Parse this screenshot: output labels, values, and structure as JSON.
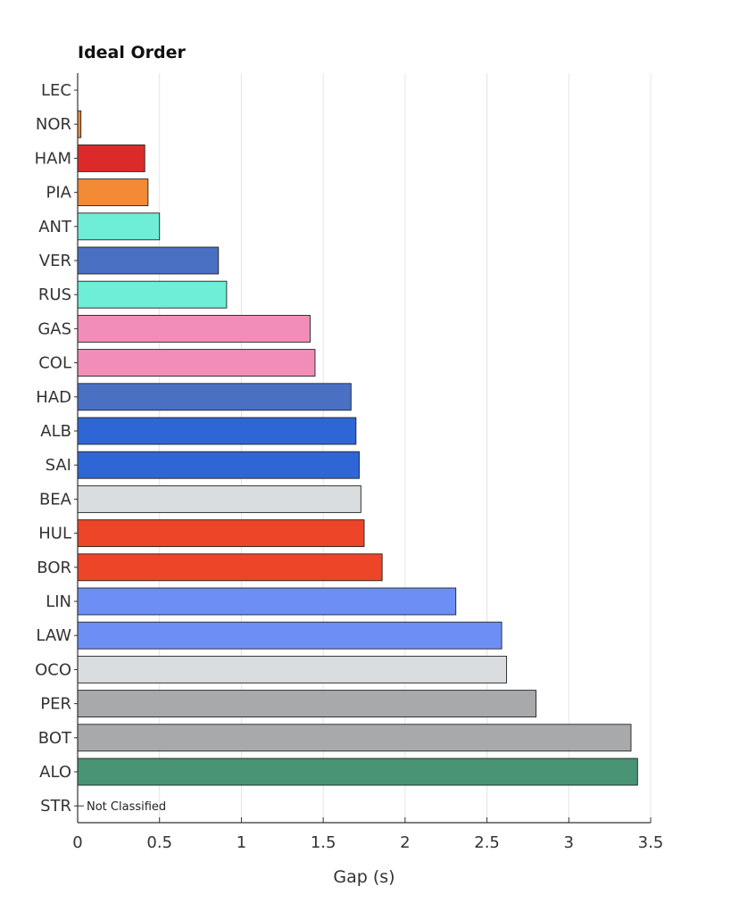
{
  "chart_data": {
    "type": "bar",
    "orientation": "horizontal",
    "title": "Ideal Order",
    "xlabel": "Gap (s)",
    "ylabel": "",
    "xlim": [
      0,
      3.5
    ],
    "xticks": [
      0,
      0.5,
      1,
      1.5,
      2,
      2.5,
      3,
      3.5
    ],
    "xtick_labels": [
      "0",
      "0.5",
      "1",
      "1.5",
      "2",
      "2.5",
      "3",
      "3.5"
    ],
    "grid": "vertical",
    "categories": [
      "LEC",
      "NOR",
      "HAM",
      "PIA",
      "ANT",
      "VER",
      "RUS",
      "GAS",
      "COL",
      "HAD",
      "ALB",
      "SAI",
      "BEA",
      "HUL",
      "BOR",
      "LIN",
      "LAW",
      "OCO",
      "PER",
      "BOT",
      "ALO",
      "STR"
    ],
    "values": [
      0,
      0.02,
      0.41,
      0.43,
      0.5,
      0.86,
      0.91,
      1.42,
      1.45,
      1.67,
      1.7,
      1.72,
      1.73,
      1.75,
      1.86,
      2.31,
      2.59,
      2.62,
      2.8,
      3.38,
      3.42,
      null
    ],
    "colors": [
      "#DC2A2A",
      "#F28A36",
      "#DC2A2A",
      "#F28A36",
      "#6EEED6",
      "#4A70C4",
      "#6EEED6",
      "#F28DB8",
      "#F28DB8",
      "#4A70C4",
      "#2F66D6",
      "#2F66D6",
      "#DADDDF",
      "#EC4527",
      "#EC4527",
      "#6D8FF5",
      "#6D8FF5",
      "#DADDDF",
      "#A7A9AB",
      "#A7A9AB",
      "#489474",
      ""
    ],
    "annotations": [
      {
        "category": "STR",
        "text": "Not Classified"
      }
    ]
  }
}
